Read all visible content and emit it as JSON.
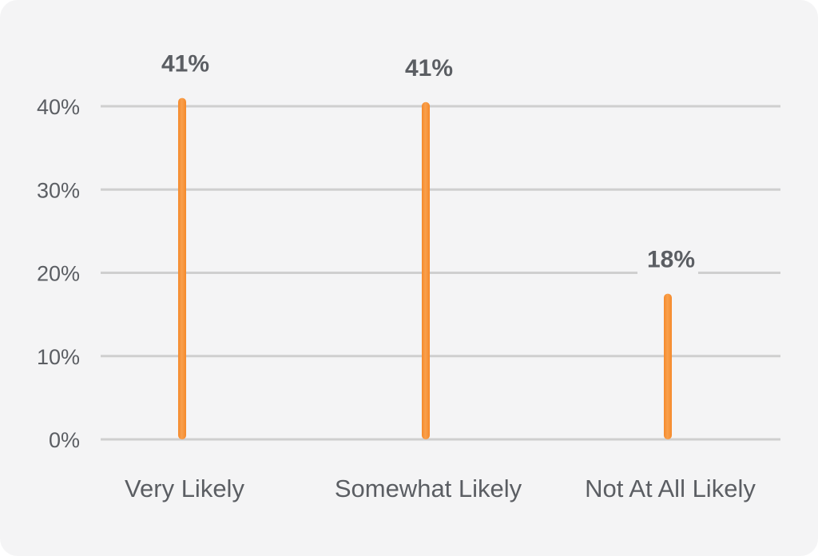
{
  "chart_data": {
    "type": "bar",
    "title": "",
    "xlabel": "",
    "ylabel": "",
    "categories": [
      "Very Likely",
      "Somewhat Likely",
      "Not At All Likely"
    ],
    "values": [
      41,
      40.5,
      17.5
    ],
    "value_labels": [
      "41%",
      "41%",
      "18%"
    ],
    "ylim": [
      0,
      41
    ],
    "yticks": [
      0,
      10,
      20,
      30,
      40
    ],
    "ytick_labels": [
      "0%",
      "10%",
      "20%",
      "30%",
      "40%"
    ],
    "grid": true,
    "legend": "none",
    "colors": {
      "bar": "#f5892a",
      "bar_highlight": "#f9a04d",
      "grid": "#cfcfcf",
      "text": "#5b5e63",
      "background": "#f4f4f5"
    }
  }
}
